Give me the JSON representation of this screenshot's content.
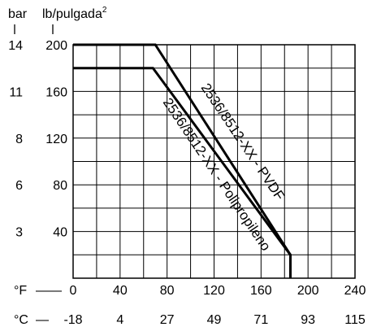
{
  "chart_data": {
    "type": "line",
    "title": "",
    "y_unit_bar": "bar",
    "y_unit_psi": "lb/pulgada",
    "y_unit_psi_sup": "2",
    "x_unit_f": "°F",
    "x_unit_c": "°C",
    "x_unit_f_dash": "——",
    "x_unit_c_dash": "—",
    "xlim": [
      0,
      240
    ],
    "ylim": [
      0,
      200
    ],
    "grid": true,
    "x_ticks_f": [
      "0",
      "40",
      "80",
      "120",
      "160",
      "200",
      "240"
    ],
    "x_ticks_c": [
      "-18",
      "4",
      "27",
      "49",
      "71",
      "93",
      "115"
    ],
    "y_ticks_psi": [
      "200",
      "160",
      "120",
      "80",
      "40"
    ],
    "y_ticks_bar": [
      "14",
      "11",
      "8",
      "6",
      "3"
    ],
    "series": [
      {
        "name": "2536/8512-XX - PVDF",
        "x": [
          0,
          70,
          185,
          185
        ],
        "y": [
          200,
          200,
          20,
          0
        ]
      },
      {
        "name": "2536/8512-XX - Polipropileno",
        "x": [
          0,
          68,
          185,
          185
        ],
        "y": [
          180,
          180,
          20,
          0
        ]
      }
    ]
  }
}
